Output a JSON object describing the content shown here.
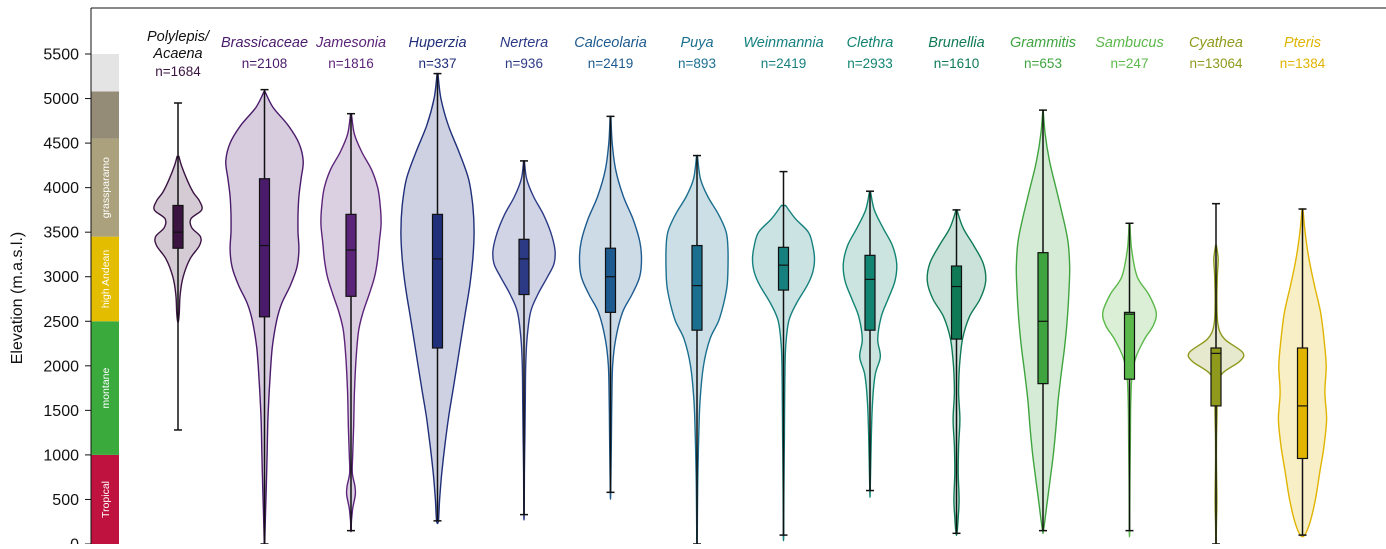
{
  "chart_data": {
    "type": "violin",
    "ylabel": "Elevation (m.a.s.l.)",
    "ylim": [
      0,
      5500
    ],
    "yticks": [
      0,
      500,
      1000,
      1500,
      2000,
      2500,
      3000,
      3500,
      4000,
      4500,
      5000,
      5500
    ],
    "zones": [
      {
        "label": "Tropical",
        "from": 0,
        "to": 1000,
        "color": "#c0123f"
      },
      {
        "label": "montane",
        "from": 1000,
        "to": 2500,
        "color": "#3aaa3d"
      },
      {
        "label": "high Andean",
        "from": 2500,
        "to": 3450,
        "color": "#e3bd00"
      },
      {
        "label": "grassparamo",
        "from": 3450,
        "to": 4550,
        "color": "#aba17c"
      },
      {
        "label": "",
        "from": 4550,
        "to": 5080,
        "color": "#958c77"
      },
      {
        "label": "",
        "from": 5080,
        "to": 5500,
        "color": "#e4e4e4"
      }
    ],
    "series": [
      {
        "name": "Polylepis/ Acaena",
        "n": "n=1684",
        "color": "#3b1442",
        "min": 1280,
        "max": 4950,
        "q1": 3320,
        "median": 3500,
        "q3": 3800,
        "violin_top": 4350,
        "violin_bottom": 2500,
        "shape": [
          [
            4350,
            0.02
          ],
          [
            4250,
            0.08
          ],
          [
            4100,
            0.2
          ],
          [
            3950,
            0.35
          ],
          [
            3850,
            0.5
          ],
          [
            3750,
            0.55
          ],
          [
            3650,
            0.3
          ],
          [
            3550,
            0.32
          ],
          [
            3450,
            0.52
          ],
          [
            3350,
            0.5
          ],
          [
            3200,
            0.28
          ],
          [
            3000,
            0.12
          ],
          [
            2800,
            0.05
          ],
          [
            2600,
            0.03
          ],
          [
            2500,
            0.01
          ]
        ]
      },
      {
        "name": "Brassicaceae",
        "n": "n=2108",
        "color": "#4a1a6b",
        "min": 0,
        "max": 5100,
        "q1": 2550,
        "median": 3350,
        "q3": 4100,
        "violin_top": 5080,
        "violin_bottom": 0,
        "shape": [
          [
            5080,
            0.01
          ],
          [
            4900,
            0.2
          ],
          [
            4700,
            0.55
          ],
          [
            4500,
            0.8
          ],
          [
            4300,
            0.9
          ],
          [
            4100,
            0.85
          ],
          [
            3900,
            0.8
          ],
          [
            3700,
            0.78
          ],
          [
            3500,
            0.78
          ],
          [
            3300,
            0.8
          ],
          [
            3100,
            0.75
          ],
          [
            2900,
            0.6
          ],
          [
            2700,
            0.4
          ],
          [
            2500,
            0.28
          ],
          [
            2200,
            0.18
          ],
          [
            1800,
            0.12
          ],
          [
            1400,
            0.08
          ],
          [
            1000,
            0.06
          ],
          [
            600,
            0.04
          ],
          [
            300,
            0.02
          ],
          [
            0,
            0.005
          ]
        ]
      },
      {
        "name": "Jamesonia",
        "n": "n=1816",
        "color": "#5b2479",
        "min": 150,
        "max": 4830,
        "q1": 2780,
        "median": 3300,
        "q3": 3700,
        "violin_top": 4830,
        "violin_bottom": 150,
        "shape": [
          [
            4830,
            0.01
          ],
          [
            4600,
            0.08
          ],
          [
            4400,
            0.25
          ],
          [
            4200,
            0.48
          ],
          [
            4000,
            0.62
          ],
          [
            3800,
            0.68
          ],
          [
            3600,
            0.7
          ],
          [
            3400,
            0.66
          ],
          [
            3200,
            0.62
          ],
          [
            3000,
            0.55
          ],
          [
            2800,
            0.42
          ],
          [
            2600,
            0.28
          ],
          [
            2400,
            0.18
          ],
          [
            2100,
            0.12
          ],
          [
            1700,
            0.08
          ],
          [
            1300,
            0.06
          ],
          [
            1000,
            0.04
          ],
          [
            800,
            0.03
          ],
          [
            650,
            0.09
          ],
          [
            550,
            0.1
          ],
          [
            400,
            0.04
          ],
          [
            250,
            0.01
          ],
          [
            150,
            0.005
          ]
        ]
      },
      {
        "name": "Huperzia",
        "n": "n=337",
        "color": "#1f2f7a",
        "min": 260,
        "max": 5280,
        "q1": 2200,
        "median": 3200,
        "q3": 3700,
        "violin_top": 5280,
        "violin_bottom": 260,
        "shape": [
          [
            5280,
            0.01
          ],
          [
            5000,
            0.08
          ],
          [
            4700,
            0.25
          ],
          [
            4400,
            0.5
          ],
          [
            4100,
            0.72
          ],
          [
            3800,
            0.82
          ],
          [
            3500,
            0.85
          ],
          [
            3200,
            0.82
          ],
          [
            2900,
            0.75
          ],
          [
            2600,
            0.65
          ],
          [
            2300,
            0.55
          ],
          [
            2000,
            0.45
          ],
          [
            1700,
            0.35
          ],
          [
            1400,
            0.25
          ],
          [
            1100,
            0.17
          ],
          [
            800,
            0.1
          ],
          [
            500,
            0.05
          ],
          [
            260,
            0.02
          ]
        ]
      },
      {
        "name": "Nertera",
        "n": "n=936",
        "color": "#2c3a86",
        "min": 330,
        "max": 4300,
        "q1": 2800,
        "median": 3200,
        "q3": 3420,
        "violin_top": 4300,
        "violin_bottom": 330,
        "shape": [
          [
            4300,
            0.01
          ],
          [
            4100,
            0.06
          ],
          [
            3900,
            0.22
          ],
          [
            3700,
            0.45
          ],
          [
            3500,
            0.62
          ],
          [
            3300,
            0.72
          ],
          [
            3150,
            0.7
          ],
          [
            3000,
            0.55
          ],
          [
            2800,
            0.32
          ],
          [
            2600,
            0.15
          ],
          [
            2300,
            0.07
          ],
          [
            2000,
            0.04
          ],
          [
            1600,
            0.03
          ],
          [
            1200,
            0.02
          ],
          [
            800,
            0.01
          ],
          [
            330,
            0.005
          ]
        ]
      },
      {
        "name": "Calceolaria",
        "n": "n=2419",
        "color": "#1d5a8f",
        "min": 580,
        "max": 4800,
        "q1": 2600,
        "median": 3000,
        "q3": 3320,
        "violin_top": 4800,
        "violin_bottom": 580,
        "shape": [
          [
            4800,
            0.01
          ],
          [
            4500,
            0.04
          ],
          [
            4200,
            0.12
          ],
          [
            3900,
            0.3
          ],
          [
            3650,
            0.52
          ],
          [
            3400,
            0.68
          ],
          [
            3200,
            0.72
          ],
          [
            3000,
            0.68
          ],
          [
            2800,
            0.5
          ],
          [
            2600,
            0.28
          ],
          [
            2300,
            0.12
          ],
          [
            2000,
            0.05
          ],
          [
            1600,
            0.03
          ],
          [
            1200,
            0.02
          ],
          [
            580,
            0.005
          ]
        ]
      },
      {
        "name": "Puya",
        "n": "n=893",
        "color": "#1b6f8f",
        "min": 0,
        "max": 4360,
        "q1": 2400,
        "median": 2900,
        "q3": 3350,
        "violin_top": 4360,
        "violin_bottom": 0,
        "shape": [
          [
            4360,
            0.01
          ],
          [
            4100,
            0.08
          ],
          [
            3900,
            0.25
          ],
          [
            3700,
            0.5
          ],
          [
            3500,
            0.68
          ],
          [
            3300,
            0.72
          ],
          [
            3100,
            0.72
          ],
          [
            2900,
            0.7
          ],
          [
            2700,
            0.62
          ],
          [
            2500,
            0.5
          ],
          [
            2300,
            0.3
          ],
          [
            2000,
            0.15
          ],
          [
            1600,
            0.07
          ],
          [
            1200,
            0.04
          ],
          [
            800,
            0.02
          ],
          [
            300,
            0.01
          ],
          [
            0,
            0.005
          ]
        ]
      },
      {
        "name": "Weinmannia",
        "n": "n=2419",
        "color": "#16807f",
        "min": 100,
        "max": 4180,
        "q1": 2850,
        "median": 3130,
        "q3": 3330,
        "violin_top": 3800,
        "violin_bottom": 100,
        "shape": [
          [
            3800,
            0.05
          ],
          [
            3650,
            0.28
          ],
          [
            3500,
            0.58
          ],
          [
            3350,
            0.68
          ],
          [
            3200,
            0.72
          ],
          [
            3050,
            0.68
          ],
          [
            2900,
            0.55
          ],
          [
            2700,
            0.3
          ],
          [
            2500,
            0.12
          ],
          [
            2200,
            0.05
          ],
          [
            1800,
            0.03
          ],
          [
            1200,
            0.02
          ],
          [
            600,
            0.01
          ],
          [
            100,
            0.005
          ]
        ]
      },
      {
        "name": "Clethra",
        "n": "n=2933",
        "color": "#128572",
        "min": 600,
        "max": 3960,
        "q1": 2400,
        "median": 2970,
        "q3": 3240,
        "violin_top": 3960,
        "violin_bottom": 600,
        "shape": [
          [
            3960,
            0.01
          ],
          [
            3750,
            0.1
          ],
          [
            3550,
            0.3
          ],
          [
            3350,
            0.52
          ],
          [
            3150,
            0.62
          ],
          [
            2950,
            0.58
          ],
          [
            2750,
            0.42
          ],
          [
            2550,
            0.26
          ],
          [
            2300,
            0.18
          ],
          [
            2100,
            0.24
          ],
          [
            1900,
            0.12
          ],
          [
            1600,
            0.06
          ],
          [
            1200,
            0.03
          ],
          [
            600,
            0.005
          ]
        ]
      },
      {
        "name": "Brunellia",
        "n": "n=1610",
        "color": "#0f7a55",
        "min": 120,
        "max": 3750,
        "q1": 2300,
        "median": 2890,
        "q3": 3120,
        "violin_top": 3750,
        "violin_bottom": 120,
        "shape": [
          [
            3750,
            0.01
          ],
          [
            3550,
            0.15
          ],
          [
            3350,
            0.4
          ],
          [
            3150,
            0.62
          ],
          [
            2950,
            0.68
          ],
          [
            2750,
            0.55
          ],
          [
            2550,
            0.3
          ],
          [
            2300,
            0.14
          ],
          [
            2000,
            0.07
          ],
          [
            1700,
            0.05
          ],
          [
            1400,
            0.08
          ],
          [
            1100,
            0.05
          ],
          [
            800,
            0.04
          ],
          [
            500,
            0.06
          ],
          [
            300,
            0.04
          ],
          [
            120,
            0.01
          ]
        ]
      },
      {
        "name": "Grammitis",
        "n": "n=653",
        "color": "#3fa43f",
        "min": 150,
        "max": 4870,
        "q1": 1800,
        "median": 2500,
        "q3": 3270,
        "violin_top": 4870,
        "violin_bottom": 150,
        "shape": [
          [
            4870,
            0.005
          ],
          [
            4600,
            0.05
          ],
          [
            4300,
            0.15
          ],
          [
            4000,
            0.3
          ],
          [
            3700,
            0.45
          ],
          [
            3400,
            0.58
          ],
          [
            3100,
            0.62
          ],
          [
            2800,
            0.6
          ],
          [
            2500,
            0.56
          ],
          [
            2200,
            0.5
          ],
          [
            1900,
            0.42
          ],
          [
            1600,
            0.35
          ],
          [
            1300,
            0.3
          ],
          [
            1000,
            0.24
          ],
          [
            700,
            0.16
          ],
          [
            400,
            0.08
          ],
          [
            150,
            0.01
          ]
        ]
      },
      {
        "name": "Sambucus",
        "n": "n=247",
        "color": "#5bb84a",
        "min": 150,
        "max": 3600,
        "q1": 1850,
        "median": 2580,
        "q3": 2600,
        "violin_top": 3600,
        "violin_bottom": 150,
        "shape": [
          [
            3600,
            0.01
          ],
          [
            3300,
            0.05
          ],
          [
            3000,
            0.18
          ],
          [
            2800,
            0.45
          ],
          [
            2600,
            0.62
          ],
          [
            2450,
            0.55
          ],
          [
            2300,
            0.35
          ],
          [
            2100,
            0.15
          ],
          [
            1900,
            0.06
          ],
          [
            1600,
            0.03
          ],
          [
            1200,
            0.02
          ],
          [
            700,
            0.01
          ],
          [
            150,
            0.005
          ]
        ]
      },
      {
        "name": "Cyathea",
        "n": "n=13064",
        "color": "#8f9a1d",
        "min": 0,
        "max": 3820,
        "q1": 1550,
        "median": 2140,
        "q3": 2200,
        "violin_top": 3350,
        "violin_bottom": 0,
        "shape": [
          [
            3350,
            0.01
          ],
          [
            3200,
            0.05
          ],
          [
            3000,
            0.03
          ],
          [
            2700,
            0.02
          ],
          [
            2450,
            0.05
          ],
          [
            2300,
            0.2
          ],
          [
            2150,
            0.62
          ],
          [
            2050,
            0.55
          ],
          [
            1900,
            0.12
          ],
          [
            1700,
            0.04
          ],
          [
            1400,
            0.02
          ],
          [
            1000,
            0.01
          ],
          [
            500,
            0.02
          ],
          [
            200,
            0.01
          ],
          [
            0,
            0.005
          ]
        ]
      },
      {
        "name": "Pteris",
        "n": "n=1384",
        "color": "#e0b400",
        "min": 100,
        "max": 3760,
        "q1": 960,
        "median": 1550,
        "q3": 2200,
        "violin_top": 3760,
        "violin_bottom": 100,
        "shape": [
          [
            3760,
            0.01
          ],
          [
            3500,
            0.06
          ],
          [
            3200,
            0.15
          ],
          [
            2900,
            0.28
          ],
          [
            2600,
            0.42
          ],
          [
            2300,
            0.5
          ],
          [
            2000,
            0.55
          ],
          [
            1700,
            0.52
          ],
          [
            1400,
            0.56
          ],
          [
            1100,
            0.5
          ],
          [
            800,
            0.4
          ],
          [
            500,
            0.3
          ],
          [
            250,
            0.18
          ],
          [
            100,
            0.05
          ]
        ]
      }
    ]
  }
}
